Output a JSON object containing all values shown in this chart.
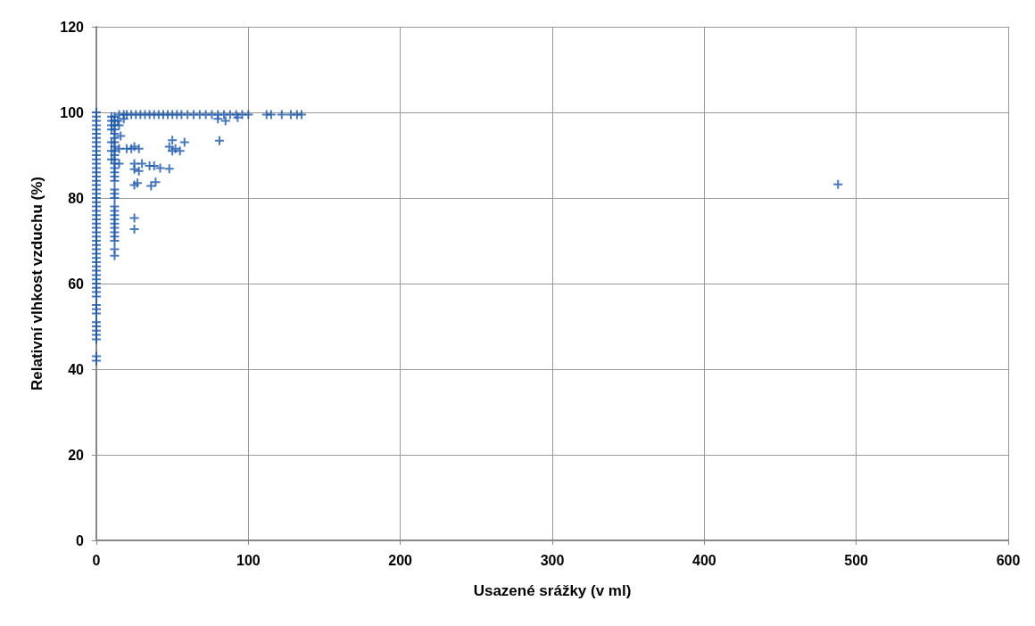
{
  "chart_data": {
    "type": "scatter",
    "xlabel": "Usazené srážky (v ml)",
    "ylabel": "Relativní vlhkost vzduchu (%)",
    "xlim": [
      0,
      600
    ],
    "xticks": [
      0,
      100,
      200,
      300,
      400,
      500,
      600
    ],
    "ylim": [
      0,
      120
    ],
    "yticks": [
      0,
      20,
      40,
      60,
      80,
      100,
      120
    ],
    "grid": true,
    "marker": "cross",
    "series": [
      {
        "color": "#1a56a6",
        "x": [
          0,
          0,
          0,
          0,
          0,
          0,
          0,
          0,
          0,
          0,
          0,
          0,
          0,
          0,
          0,
          0,
          0,
          0,
          0,
          0,
          0,
          0,
          0,
          0,
          0,
          0,
          0,
          0,
          0,
          0,
          0,
          0,
          0,
          0,
          0,
          0,
          0,
          0,
          0,
          0,
          0,
          0,
          0,
          0,
          0,
          0,
          0,
          0,
          0,
          0,
          0,
          0,
          0,
          0,
          12,
          12,
          12,
          12,
          12,
          12,
          12,
          12,
          12,
          12,
          12,
          12,
          12,
          12,
          12,
          12,
          12,
          12,
          12,
          12,
          12,
          12,
          12,
          12,
          12,
          12,
          12,
          12,
          12,
          12,
          10,
          10,
          10,
          10,
          10,
          10,
          10,
          15,
          18,
          20,
          23,
          26,
          29,
          32,
          35,
          38,
          41,
          44,
          47,
          50,
          53,
          56,
          60,
          64,
          68,
          72,
          76,
          80,
          84,
          88,
          92,
          96,
          100,
          112,
          115,
          122,
          128,
          132,
          135,
          25,
          25,
          23,
          25,
          28,
          25,
          30,
          35,
          38,
          42,
          48,
          25,
          28,
          25,
          27,
          36,
          39,
          48,
          50,
          52,
          55,
          58,
          50,
          81,
          80,
          93,
          85,
          15,
          18,
          16,
          15,
          20,
          15,
          14,
          488
        ],
        "values": [
          42,
          43,
          47,
          48,
          49,
          50,
          51,
          53,
          54,
          55,
          57,
          58,
          59,
          60,
          61,
          62,
          63,
          64,
          65,
          66,
          67,
          68,
          69,
          70,
          71,
          72,
          73,
          74,
          75,
          76,
          77,
          78,
          79,
          80,
          81,
          82,
          83,
          84,
          85,
          86,
          87,
          88,
          89,
          90,
          91,
          92,
          93,
          94,
          95,
          96,
          97,
          98,
          99,
          100,
          66.5,
          68,
          70,
          71,
          72,
          73,
          74,
          75,
          76,
          77,
          78,
          80,
          81,
          82,
          84,
          85,
          86,
          87,
          88,
          89,
          90,
          91,
          92,
          93,
          94,
          95,
          96,
          97,
          98,
          99,
          89,
          91,
          93,
          96,
          97,
          98,
          99,
          99.5,
          99.5,
          99.5,
          99.5,
          99.5,
          99.5,
          99.5,
          99.5,
          99.5,
          99.5,
          99.5,
          99.5,
          99.5,
          99.5,
          99.5,
          99.5,
          99.5,
          99.5,
          99.5,
          99.5,
          99.5,
          99.5,
          99.5,
          99.5,
          99.5,
          99.5,
          99.5,
          99.5,
          99.5,
          99.5,
          99.5,
          99.5,
          75.3,
          72.7,
          91.5,
          92,
          91.5,
          88,
          88,
          87.5,
          87.5,
          87,
          86.8,
          86.7,
          86.3,
          83,
          83.5,
          82.8,
          83.7,
          92,
          93.5,
          91.5,
          91,
          93,
          91,
          93.4,
          98.5,
          98.8,
          98,
          97,
          98.5,
          94.5,
          91.5,
          91.5,
          88,
          98,
          83.2
        ]
      }
    ]
  }
}
